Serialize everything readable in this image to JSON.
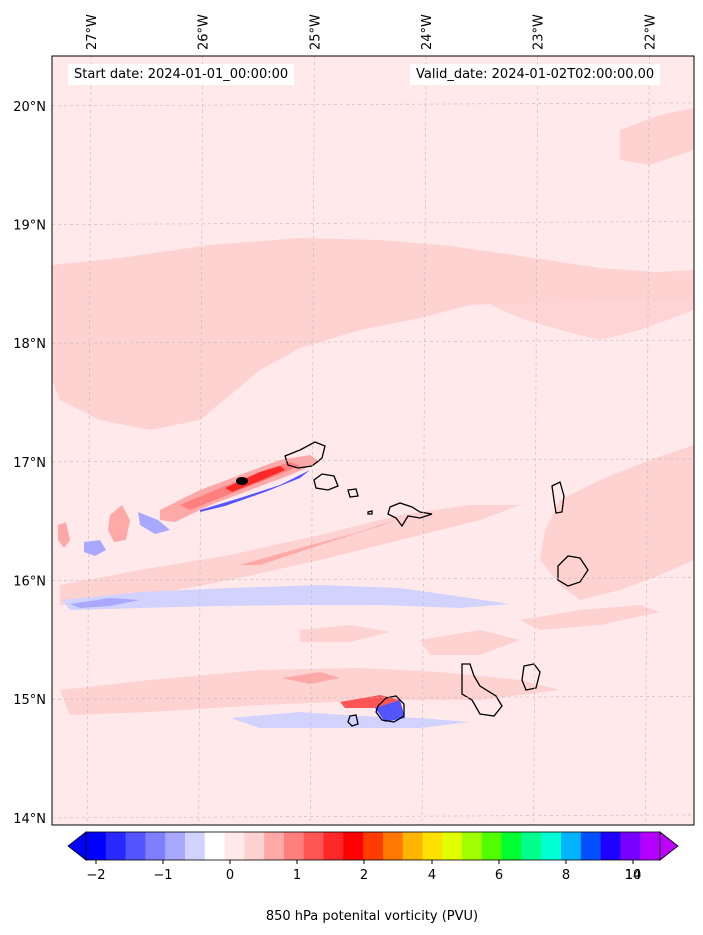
{
  "header": {
    "start_date": "Start date: 2024-01-01_00:00:00",
    "valid_date": "Valid_date: 2024-01-02T02:00:00.00"
  },
  "map": {
    "lon_labels": [
      "27°W",
      "26°W",
      "25°W",
      "24°W",
      "23°W",
      "22°W"
    ],
    "lat_labels": [
      "20°N",
      "19°N",
      "18°N",
      "17°N",
      "16°N",
      "15°N",
      "14°N"
    ],
    "lon_range": [
      -27.35,
      -21.6
    ],
    "lat_range": [
      13.94,
      20.42
    ],
    "background_color": "#ffe9ea"
  },
  "colorbar": {
    "label": "850 hPa potenital vorticity (PVU)",
    "tick_labels": [
      "−2",
      "−1",
      "0",
      "1",
      "2",
      "4",
      "6",
      "8",
      "10",
      "14"
    ],
    "colors": [
      "#0000ff",
      "#2828ff",
      "#5555ff",
      "#7e7eff",
      "#a8a8ff",
      "#d2d2ff",
      "#ffffff",
      "#ffe9ea",
      "#ffd2d2",
      "#ffa8a8",
      "#ff7e7e",
      "#ff5555",
      "#ff2828",
      "#ff0000",
      "#ff3c00",
      "#ff7800",
      "#ffb400",
      "#ffe100",
      "#e1ff00",
      "#a0ff00",
      "#50ff00",
      "#00ff32",
      "#00ff8c",
      "#00ffd2",
      "#00b4ff",
      "#0050ff",
      "#1e00ff",
      "#7800ff",
      "#b400ff"
    ],
    "extend_low_color": "#0000ff",
    "extend_high_color": "#c000ff"
  }
}
